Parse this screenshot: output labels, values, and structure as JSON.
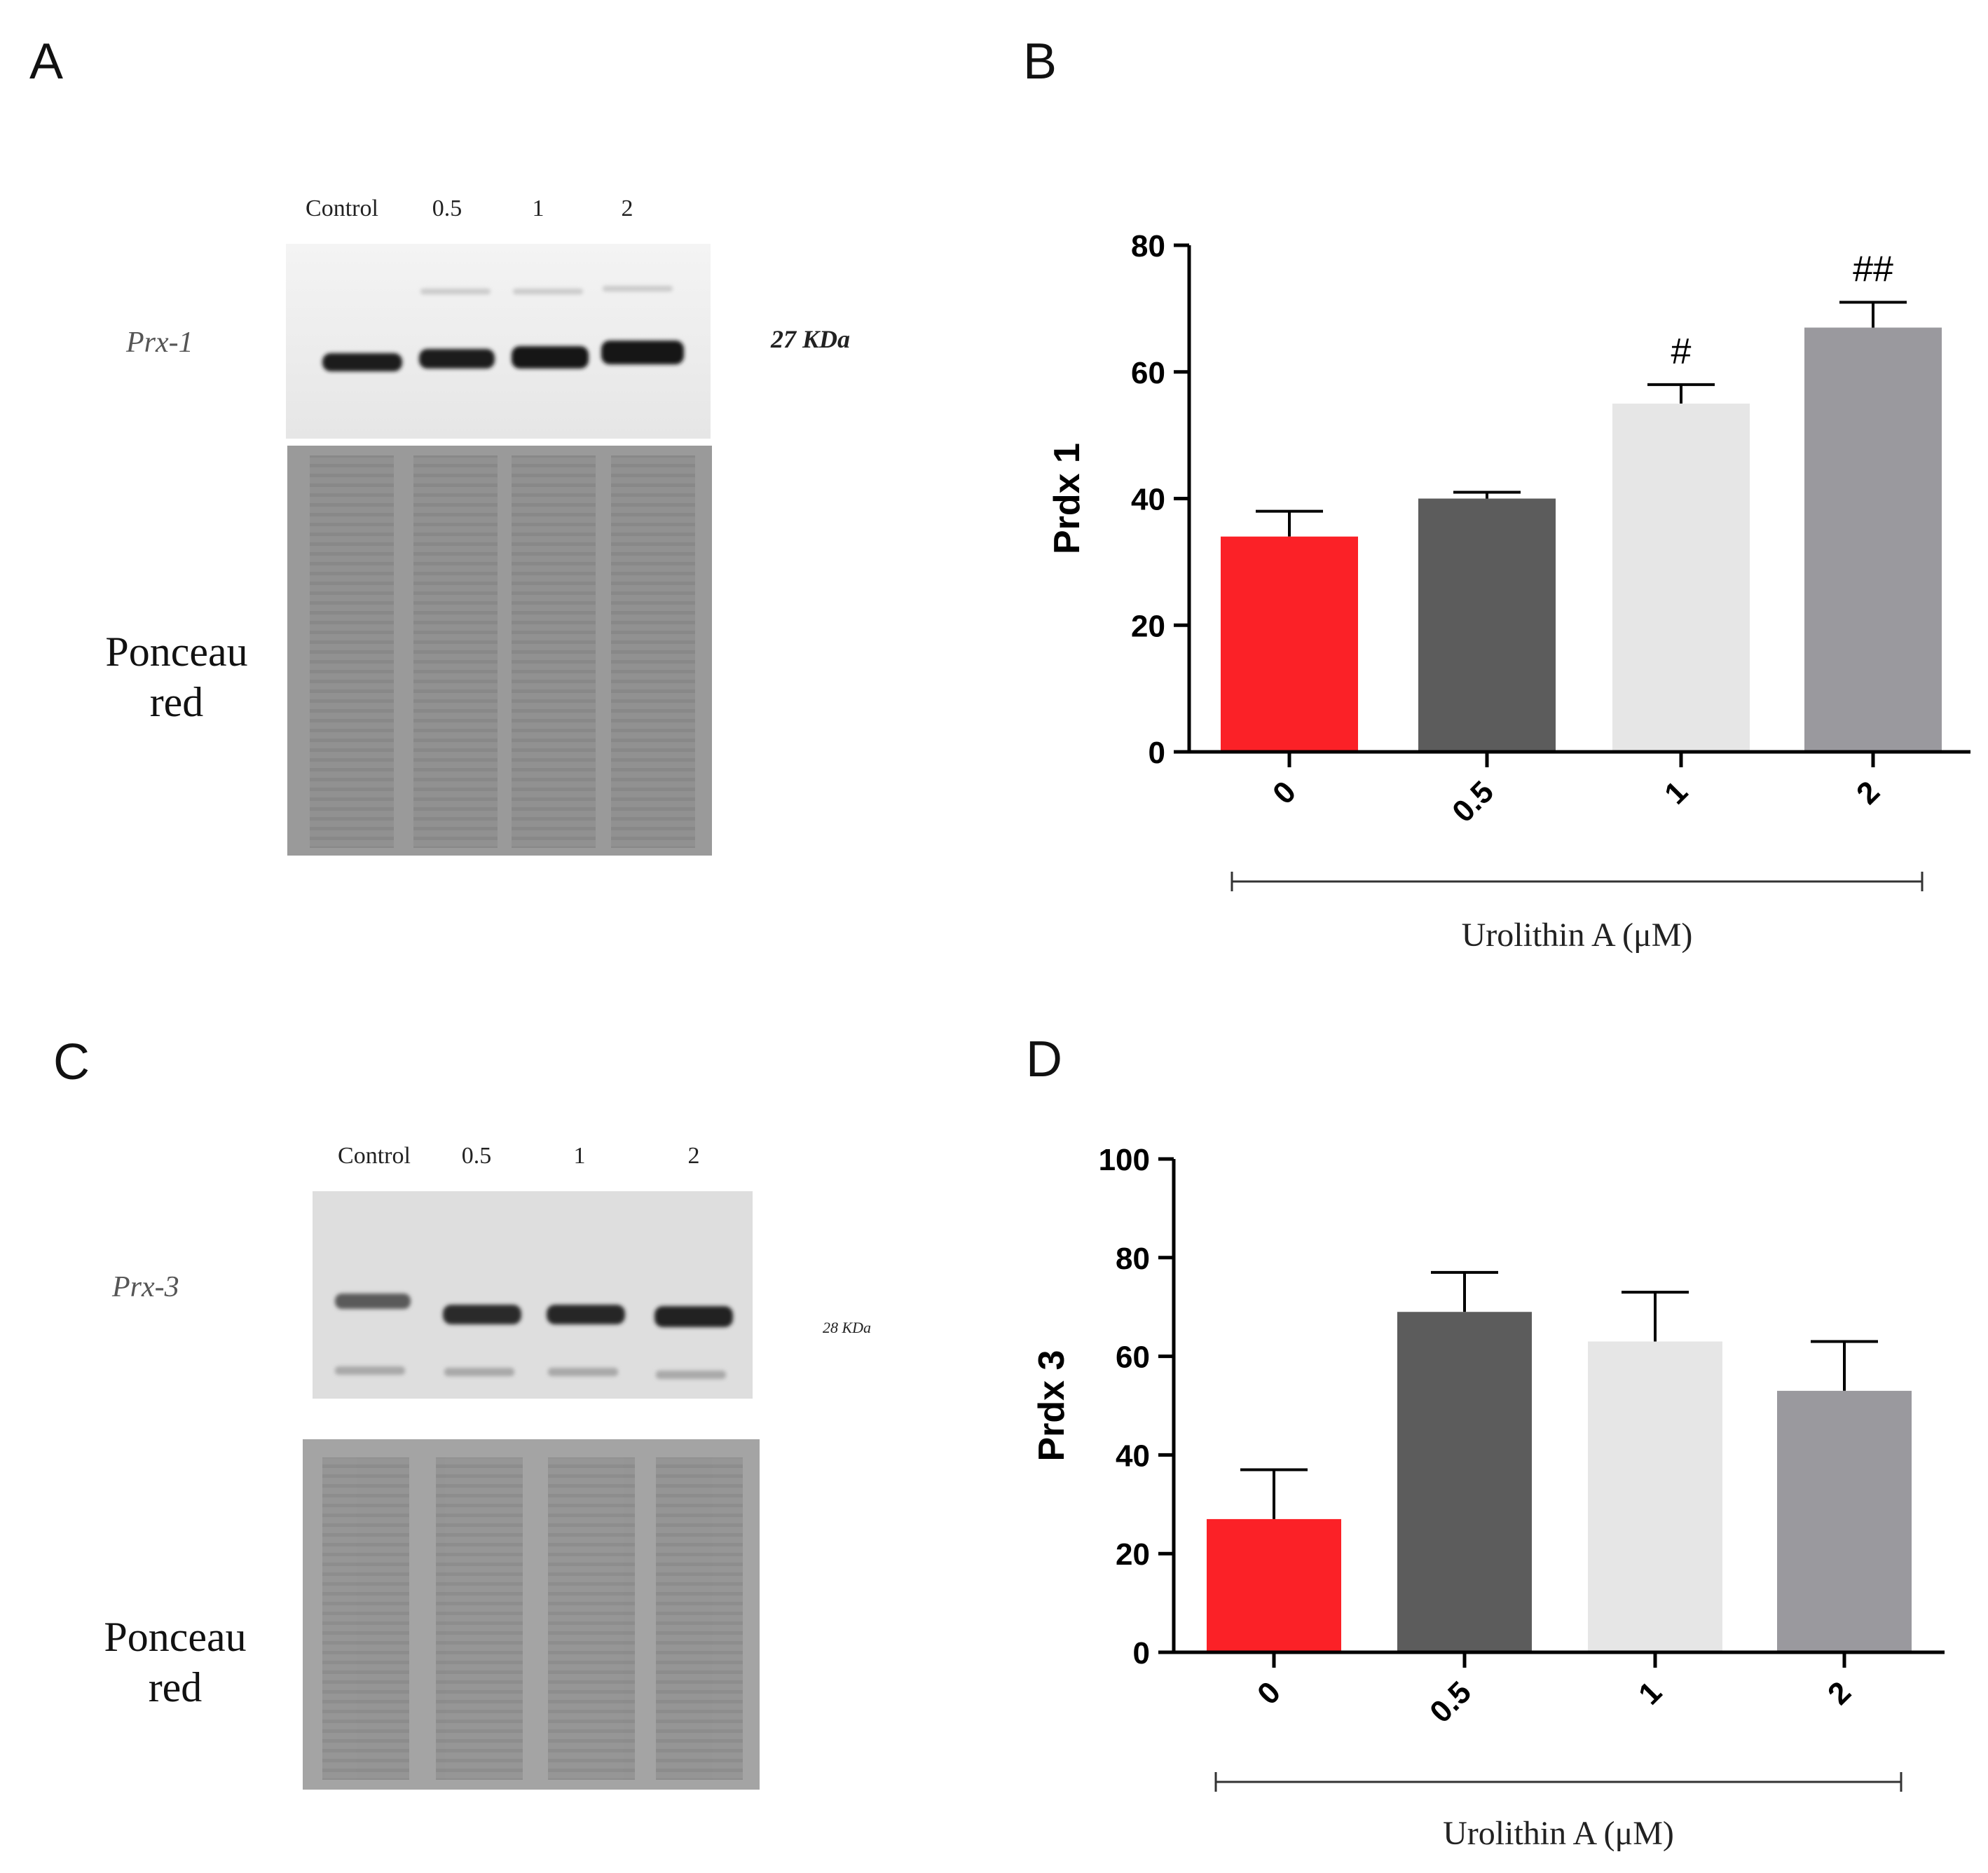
{
  "panels": {
    "a": {
      "letter": "A",
      "lanes": [
        "Control",
        "0.5",
        "1",
        "2"
      ],
      "protein": "Prx-1",
      "kda": "27 KDa",
      "ponceau_line1": "Ponceau",
      "ponceau_line2": "red"
    },
    "c": {
      "letter": "C",
      "lanes": [
        "Control",
        "0.5",
        "1",
        "2"
      ],
      "protein": "Prx-3",
      "kda": "28 KDa",
      "ponceau_line1": "Ponceau",
      "ponceau_line2": "red"
    }
  },
  "colors": {
    "bar0": "#fb2127",
    "bar05": "#5c5c5c",
    "bar1": "#e6e6e6",
    "bar2": "#9a999e"
  },
  "chart_data": [
    {
      "panel": "B",
      "type": "bar",
      "categories": [
        "0",
        "0.5",
        "1",
        "2"
      ],
      "values": [
        34,
        40,
        55,
        67
      ],
      "errors": [
        4,
        1,
        3,
        4
      ],
      "annotations": [
        "",
        "",
        "#",
        "##"
      ],
      "ylabel": "Prdx 1",
      "xlabel": "Urolithin A (μM)",
      "ylim": [
        0,
        80
      ],
      "yticks": [
        0,
        20,
        40,
        60,
        80
      ]
    },
    {
      "panel": "D",
      "type": "bar",
      "categories": [
        "0",
        "0.5",
        "1",
        "2"
      ],
      "values": [
        27,
        69,
        63,
        53
      ],
      "errors": [
        10,
        8,
        10,
        10
      ],
      "annotations": [
        "",
        "",
        "",
        ""
      ],
      "ylabel": "Prdx 3",
      "xlabel": "Urolithin A (μM)",
      "ylim": [
        0,
        100
      ],
      "yticks": [
        0,
        20,
        40,
        60,
        80,
        100
      ]
    }
  ]
}
